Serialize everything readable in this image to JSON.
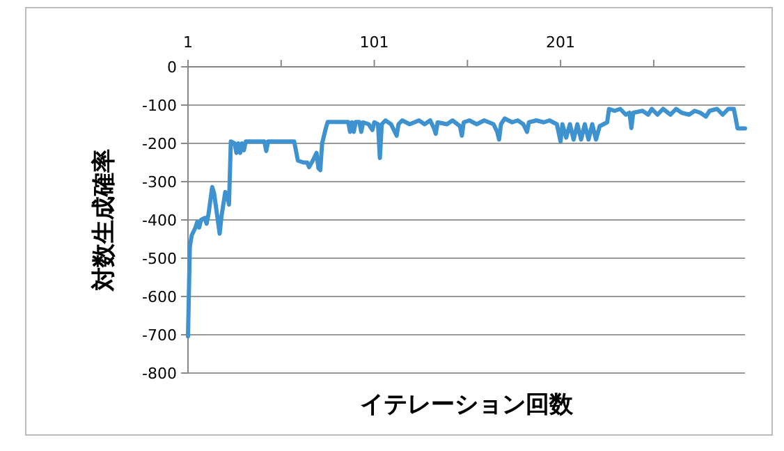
{
  "chart_data": {
    "type": "line",
    "xlabel": "イテレーション回数",
    "ylabel": "対数生成確率",
    "xlim": [
      1,
      300
    ],
    "xticks": [
      1,
      {
        "value": 51,
        "label": null
      },
      101,
      {
        "value": 151,
        "label": null
      },
      201,
      {
        "value": 251,
        "label": null
      }
    ],
    "ylim": [
      -800,
      0
    ],
    "yticks": [
      -800,
      -700,
      -600,
      -500,
      -400,
      -300,
      -200,
      -100,
      0
    ],
    "grid": "y",
    "marker": "none",
    "line_style": "solid",
    "series": [
      {
        "color": "#3d92cf",
        "x": [
          1,
          2,
          3,
          5,
          6,
          7,
          8,
          10,
          11,
          12,
          14,
          15,
          17,
          18,
          19,
          21,
          22,
          23,
          24,
          26,
          27,
          28,
          29,
          30,
          31,
          32,
          42,
          43,
          44,
          58,
          60,
          63,
          65,
          66,
          68,
          69,
          70,
          71,
          72,
          73,
          75,
          76,
          87,
          88,
          89,
          90,
          91,
          93,
          94,
          95,
          98,
          100,
          101,
          103,
          104,
          105,
          107,
          110,
          112,
          113,
          114,
          116,
          120,
          125,
          128,
          131,
          133,
          134,
          135,
          140,
          143,
          147,
          148,
          149,
          152,
          156,
          160,
          165,
          167,
          168,
          169,
          171,
          175,
          178,
          181,
          183,
          184,
          188,
          192,
          195,
          199,
          201,
          202,
          204,
          206,
          208,
          210,
          212,
          214,
          216,
          218,
          220,
          222,
          224,
          226,
          227,
          230,
          233,
          236,
          238,
          239,
          240,
          245,
          248,
          250,
          253,
          256,
          260,
          263,
          266,
          270,
          273,
          276,
          279,
          281,
          285,
          288,
          291,
          294,
          295,
          296,
          300
        ],
        "values": [
          -704,
          -470,
          -440,
          -420,
          -405,
          -420,
          -400,
          -395,
          -410,
          -385,
          -314,
          -330,
          -400,
          -436,
          -390,
          -327,
          -335,
          -360,
          -195,
          -200,
          -225,
          -200,
          -225,
          -200,
          -218,
          -195,
          -195,
          -220,
          -195,
          -195,
          -245,
          -250,
          -250,
          -262,
          -245,
          -235,
          -225,
          -265,
          -270,
          -200,
          -160,
          -144,
          -144,
          -170,
          -145,
          -170,
          -144,
          -144,
          -170,
          -145,
          -150,
          -165,
          -145,
          -150,
          -238,
          -150,
          -140,
          -150,
          -170,
          -180,
          -150,
          -140,
          -150,
          -140,
          -150,
          -140,
          -160,
          -175,
          -145,
          -150,
          -140,
          -155,
          -180,
          -145,
          -140,
          -150,
          -140,
          -150,
          -170,
          -190,
          -150,
          -135,
          -145,
          -140,
          -150,
          -170,
          -145,
          -140,
          -145,
          -140,
          -150,
          -195,
          -150,
          -185,
          -150,
          -190,
          -150,
          -190,
          -150,
          -190,
          -150,
          -190,
          -155,
          -150,
          -145,
          -110,
          -115,
          -110,
          -125,
          -120,
          -160,
          -120,
          -115,
          -125,
          -110,
          -125,
          -110,
          -125,
          -110,
          -120,
          -125,
          -115,
          -120,
          -130,
          -115,
          -110,
          -125,
          -110,
          -110,
          -135,
          -161,
          -161
        ]
      }
    ]
  }
}
